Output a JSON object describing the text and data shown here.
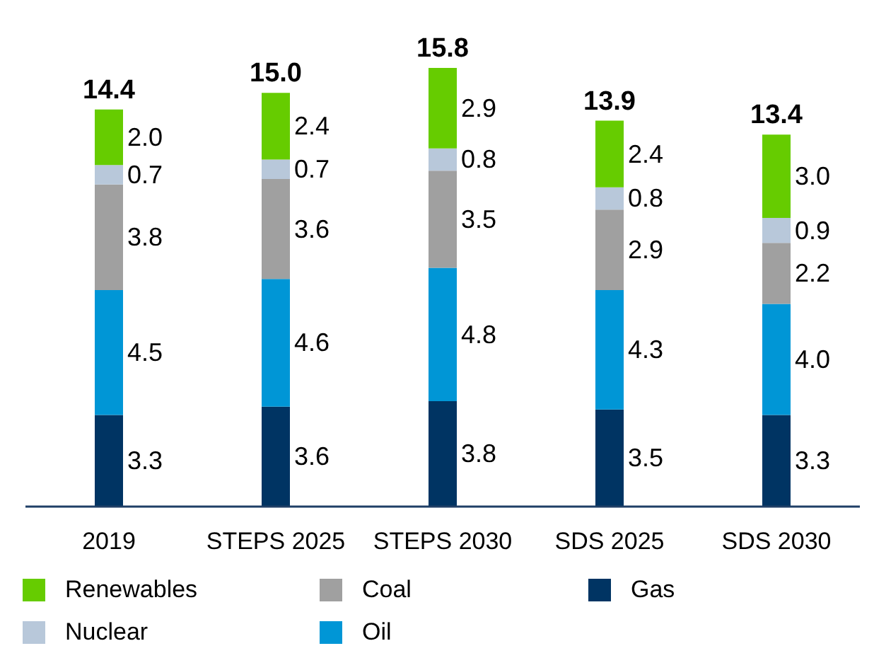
{
  "chart_data": {
    "type": "bar",
    "stacked": true,
    "legend": "bottom",
    "categories": [
      "2019",
      "STEPS 2025",
      "STEPS 2030",
      "SDS 2025",
      "SDS 2030"
    ],
    "series": [
      {
        "name": "Gas",
        "color": "#003463",
        "values": [
          3.3,
          3.6,
          3.8,
          3.5,
          3.3
        ],
        "value_labels": [
          "3.3",
          "3.6",
          "3.8",
          "3.5",
          "3.3"
        ]
      },
      {
        "name": "Oil",
        "color": "#0096d6",
        "values": [
          4.5,
          4.6,
          4.8,
          4.3,
          4.0
        ],
        "value_labels": [
          "4.5",
          "4.6",
          "4.8",
          "4.3",
          "4.0"
        ]
      },
      {
        "name": "Coal",
        "color": "#a0a0a0",
        "values": [
          3.8,
          3.6,
          3.5,
          2.9,
          2.2
        ],
        "value_labels": [
          "3.8",
          "3.6",
          "3.5",
          "2.9",
          "2.2"
        ]
      },
      {
        "name": "Nuclear",
        "color": "#b8c8da",
        "values": [
          0.7,
          0.7,
          0.8,
          0.8,
          0.9
        ],
        "value_labels": [
          "0.7",
          "0.7",
          "0.8",
          "0.8",
          "0.9"
        ]
      },
      {
        "name": "Renewables",
        "color": "#66cc00",
        "values": [
          2.0,
          2.4,
          2.9,
          2.4,
          3.0
        ],
        "value_labels": [
          "2.0",
          "2.4",
          "2.9",
          "2.4",
          "3.0"
        ]
      }
    ],
    "totals": [
      "14.4",
      "15.0",
      "15.8",
      "13.9",
      "13.4"
    ]
  }
}
